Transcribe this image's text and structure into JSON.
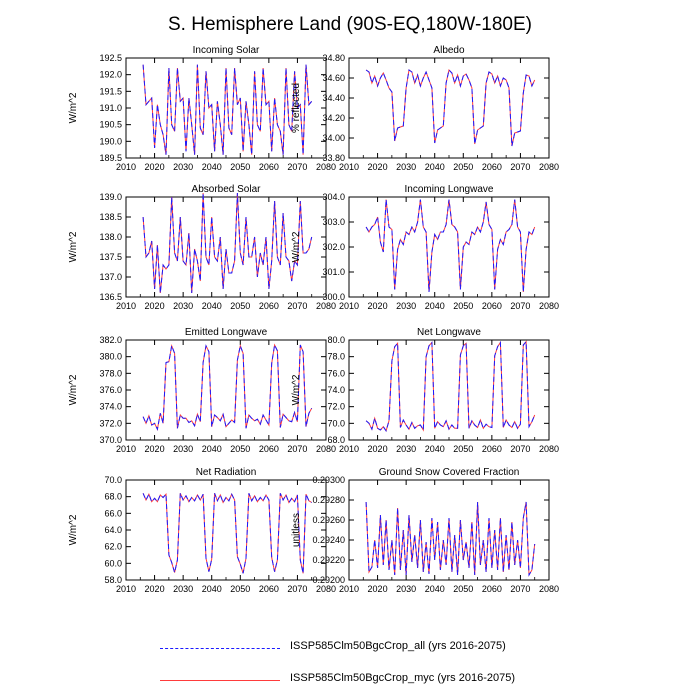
{
  "page_title": "S. Hemisphere Land (90S-EQ,180W-180E)",
  "legend": [
    {
      "label": "ISSP585Clm50BgcCrop_all (yrs 2016-2075)",
      "color": "#1a1aff",
      "style": "dashed"
    },
    {
      "label": "ISSP585Clm50BgcCrop_myc (yrs 2016-2075)",
      "color": "#ff3b3b",
      "style": "solid"
    }
  ],
  "chart_data": [
    {
      "type": "line",
      "title": "Incoming Solar",
      "ylabel": "W/m^2",
      "xlim": [
        2010,
        2080
      ],
      "ylim": [
        189.5,
        192.5
      ],
      "xticks": [
        2010,
        2020,
        2030,
        2040,
        2050,
        2060,
        2070,
        2080
      ],
      "yticks": [
        189.5,
        190.0,
        190.5,
        191.0,
        191.5,
        192.0,
        192.5
      ],
      "ytick_labels": [
        "189.5",
        "190.0",
        "190.5",
        "191.0",
        "191.5",
        "192.0",
        "192.5"
      ],
      "x_start": 2016,
      "values": [
        192.3,
        191.1,
        191.2,
        191.3,
        189.8,
        191.1,
        190.5,
        190.2,
        189.6,
        192.2,
        190.5,
        190.3,
        192.2,
        191.2,
        191.3,
        189.7,
        191.3,
        190.5,
        189.6,
        192.3,
        190.4,
        190.2,
        192.1,
        191.0,
        191.1,
        189.7,
        191.2,
        190.5,
        189.6,
        192.2,
        190.4,
        190.2,
        192.2,
        191.1,
        191.3,
        189.7,
        191.2,
        190.5,
        189.6,
        192.1,
        190.5,
        190.3,
        192.2,
        191.1,
        191.2,
        189.7,
        191.3,
        190.5,
        190.3,
        189.6,
        192.2,
        190.5,
        190.3,
        192.1,
        191.0,
        191.1,
        189.6,
        192.3,
        191.1,
        191.2
      ]
    },
    {
      "type": "line",
      "title": "Albedo",
      "ylabel": "% reflected",
      "xlim": [
        2010,
        2080
      ],
      "ylim": [
        33.8,
        34.8
      ],
      "xticks": [
        2010,
        2020,
        2030,
        2040,
        2050,
        2060,
        2070,
        2080
      ],
      "yticks": [
        33.8,
        34.0,
        34.2,
        34.4,
        34.6,
        34.8
      ],
      "ytick_labels": [
        "33.80",
        "34.00",
        "34.20",
        "34.40",
        "34.60",
        "34.80"
      ],
      "x_start": 2016,
      "values": [
        34.68,
        34.66,
        34.55,
        34.62,
        34.52,
        34.6,
        34.65,
        34.58,
        34.5,
        34.46,
        33.97,
        34.1,
        34.11,
        34.12,
        34.5,
        34.68,
        34.66,
        34.55,
        34.63,
        34.52,
        34.6,
        34.66,
        34.58,
        34.5,
        33.95,
        34.08,
        34.1,
        34.12,
        34.55,
        34.68,
        34.65,
        34.55,
        34.63,
        34.52,
        34.62,
        34.64,
        34.58,
        34.5,
        33.94,
        34.08,
        34.1,
        34.12,
        34.55,
        34.66,
        34.64,
        34.55,
        34.62,
        34.52,
        34.6,
        34.58,
        34.5,
        33.92,
        34.05,
        34.06,
        34.07,
        34.45,
        34.63,
        34.62,
        34.52,
        34.58
      ]
    },
    {
      "type": "line",
      "title": "Absorbed Solar",
      "ylabel": "W/m^2",
      "xlim": [
        2010,
        2080
      ],
      "ylim": [
        136.5,
        139.0
      ],
      "xticks": [
        2010,
        2020,
        2030,
        2040,
        2050,
        2060,
        2070,
        2080
      ],
      "yticks": [
        136.5,
        137.0,
        137.5,
        138.0,
        138.5,
        139.0
      ],
      "ytick_labels": [
        "136.5",
        "137.0",
        "137.5",
        "138.0",
        "138.5",
        "139.0"
      ],
      "x_start": 2016,
      "values": [
        138.5,
        137.5,
        137.6,
        137.9,
        136.7,
        137.8,
        136.6,
        137.3,
        137.2,
        137.3,
        139.0,
        137.6,
        137.4,
        138.5,
        137.4,
        137.3,
        138.1,
        136.6,
        137.7,
        137.4,
        136.9,
        139.1,
        137.5,
        137.3,
        138.5,
        137.5,
        137.4,
        138.0,
        136.7,
        137.7,
        137.1,
        137.1,
        137.4,
        139.1,
        137.6,
        137.3,
        138.5,
        137.5,
        137.5,
        138.0,
        137.0,
        137.6,
        137.3,
        138.0,
        136.7,
        137.4,
        138.9,
        137.5,
        137.3,
        138.6,
        137.5,
        137.4,
        136.9,
        137.4,
        137.3,
        138.9,
        137.6,
        137.6,
        137.7,
        138.0
      ]
    },
    {
      "type": "line",
      "title": "Incoming Longwave",
      "ylabel": "W/m^2",
      "xlim": [
        2010,
        2080
      ],
      "ylim": [
        300.0,
        304.0
      ],
      "xticks": [
        2010,
        2020,
        2030,
        2040,
        2050,
        2060,
        2070,
        2080
      ],
      "yticks": [
        300.0,
        301.0,
        302.0,
        303.0,
        304.0
      ],
      "ytick_labels": [
        "300.0",
        "301.0",
        "302.0",
        "303.0",
        "304.0"
      ],
      "x_start": 2016,
      "values": [
        302.8,
        302.6,
        302.8,
        302.9,
        303.2,
        302.2,
        301.8,
        303.9,
        302.8,
        302.7,
        300.3,
        301.9,
        302.3,
        302.1,
        302.6,
        302.5,
        302.8,
        302.6,
        303.0,
        303.9,
        302.8,
        302.6,
        300.2,
        301.8,
        302.5,
        302.3,
        302.6,
        302.6,
        302.9,
        303.9,
        302.9,
        302.8,
        302.6,
        300.3,
        302.0,
        302.2,
        302.1,
        302.6,
        302.5,
        302.8,
        302.6,
        303.0,
        303.8,
        302.9,
        302.7,
        300.3,
        301.9,
        302.3,
        302.1,
        302.6,
        302.7,
        302.9,
        303.9,
        302.8,
        302.6,
        300.2,
        301.9,
        302.6,
        302.5,
        302.8
      ]
    },
    {
      "type": "line",
      "title": "Emitted Longwave",
      "ylabel": "W/m^2",
      "xlim": [
        2010,
        2080
      ],
      "ylim": [
        370.0,
        382.0
      ],
      "xticks": [
        2010,
        2020,
        2030,
        2040,
        2050,
        2060,
        2070,
        2080
      ],
      "yticks": [
        370.0,
        372.0,
        374.0,
        376.0,
        378.0,
        380.0,
        382.0
      ],
      "ytick_labels": [
        "370.0",
        "372.0",
        "374.0",
        "376.0",
        "378.0",
        "380.0",
        "382.0"
      ],
      "x_start": 2016,
      "values": [
        372.8,
        372.0,
        372.9,
        371.8,
        372.0,
        371.3,
        373.2,
        372.0,
        379.3,
        379.4,
        381.3,
        380.4,
        371.4,
        373.0,
        372.6,
        372.6,
        372.1,
        372.3,
        371.7,
        373.1,
        372.2,
        379.3,
        381.3,
        380.6,
        371.6,
        373.0,
        372.7,
        372.3,
        373.1,
        371.6,
        372.0,
        372.4,
        372.1,
        379.6,
        381.3,
        380.4,
        371.4,
        373.0,
        372.6,
        372.3,
        372.5,
        371.9,
        373.0,
        372.4,
        371.8,
        379.2,
        381.4,
        380.7,
        371.5,
        373.1,
        372.7,
        372.3,
        372.2,
        373.3,
        372.2,
        381.4,
        380.6,
        371.6,
        373.2,
        373.8
      ]
    },
    {
      "type": "line",
      "title": "Net Longwave",
      "ylabel": "W/m^2",
      "xlim": [
        2010,
        2080
      ],
      "ylim": [
        68.0,
        80.0
      ],
      "xticks": [
        2010,
        2020,
        2030,
        2040,
        2050,
        2060,
        2070,
        2080
      ],
      "yticks": [
        68.0,
        70.0,
        72.0,
        74.0,
        76.0,
        78.0,
        80.0
      ],
      "ytick_labels": [
        "68.0",
        "70.0",
        "72.0",
        "74.0",
        "76.0",
        "78.0",
        "80.0"
      ],
      "x_start": 2016,
      "values": [
        70.3,
        70.0,
        69.3,
        70.6,
        69.4,
        69.2,
        69.6,
        69.1,
        70.3,
        77.5,
        79.2,
        79.6,
        69.5,
        70.4,
        69.8,
        69.3,
        70.1,
        69.4,
        69.7,
        69.8,
        69.2,
        78.0,
        79.3,
        79.7,
        69.4,
        70.2,
        69.8,
        69.6,
        70.3,
        69.3,
        69.8,
        69.4,
        69.4,
        78.2,
        79.3,
        79.6,
        69.4,
        70.3,
        69.8,
        69.5,
        70.4,
        69.4,
        69.9,
        69.6,
        69.5,
        78.1,
        79.2,
        79.7,
        69.5,
        70.4,
        69.8,
        69.5,
        70.2,
        69.4,
        69.9,
        79.4,
        79.8,
        69.6,
        70.2,
        71.0
      ]
    },
    {
      "type": "line",
      "title": "Net Radiation",
      "ylabel": "W/m^2",
      "xlim": [
        2010,
        2080
      ],
      "ylim": [
        58.0,
        70.0
      ],
      "xticks": [
        2010,
        2020,
        2030,
        2040,
        2050,
        2060,
        2070,
        2080
      ],
      "yticks": [
        58.0,
        60.0,
        62.0,
        64.0,
        66.0,
        68.0,
        70.0
      ],
      "ytick_labels": [
        "58.0",
        "60.0",
        "62.0",
        "64.0",
        "66.0",
        "68.0",
        "70.0"
      ],
      "x_start": 2016,
      "values": [
        68.4,
        67.6,
        68.3,
        67.4,
        67.8,
        67.4,
        68.2,
        67.9,
        68.3,
        61.0,
        60.1,
        58.9,
        60.4,
        68.4,
        67.6,
        68.1,
        67.4,
        67.9,
        67.5,
        68.2,
        67.6,
        68.3,
        60.6,
        59.0,
        60.5,
        68.4,
        67.5,
        68.2,
        67.3,
        67.9,
        67.5,
        68.3,
        67.6,
        60.8,
        59.9,
        58.8,
        60.6,
        68.4,
        67.5,
        68.1,
        67.4,
        67.9,
        67.5,
        68.2,
        67.6,
        60.7,
        59.0,
        60.4,
        68.4,
        67.6,
        68.2,
        67.3,
        67.8,
        67.4,
        68.2,
        60.4,
        58.8,
        68.3,
        67.5,
        67.3
      ]
    },
    {
      "type": "line",
      "title": "Ground Snow Covered Fraction",
      "ylabel": "unitless",
      "xlim": [
        2010,
        2080
      ],
      "ylim": [
        0.292,
        0.293
      ],
      "xticks": [
        2010,
        2020,
        2030,
        2040,
        2050,
        2060,
        2070,
        2080
      ],
      "yticks": [
        0.292,
        0.2922,
        0.2924,
        0.2926,
        0.2928,
        0.293
      ],
      "ytick_labels": [
        "0.29200",
        "0.29220",
        "0.29240",
        "0.29260",
        "0.29280",
        "0.29300"
      ],
      "x_start": 2016,
      "values": [
        0.29278,
        0.29208,
        0.29213,
        0.2924,
        0.29212,
        0.29265,
        0.29215,
        0.2926,
        0.2921,
        0.2924,
        0.29205,
        0.29272,
        0.2921,
        0.2925,
        0.29205,
        0.29265,
        0.29218,
        0.29245,
        0.29212,
        0.2926,
        0.29208,
        0.29238,
        0.29206,
        0.29262,
        0.2922,
        0.29258,
        0.2921,
        0.2924,
        0.29215,
        0.29262,
        0.29208,
        0.29245,
        0.29205,
        0.2926,
        0.2922,
        0.29238,
        0.29212,
        0.29258,
        0.29205,
        0.29278,
        0.29215,
        0.2924,
        0.29208,
        0.29262,
        0.29212,
        0.2925,
        0.2921,
        0.29262,
        0.29208,
        0.29245,
        0.2921,
        0.29258,
        0.29215,
        0.2924,
        0.29212,
        0.29262,
        0.29278,
        0.29205,
        0.2921,
        0.29236
      ]
    }
  ]
}
